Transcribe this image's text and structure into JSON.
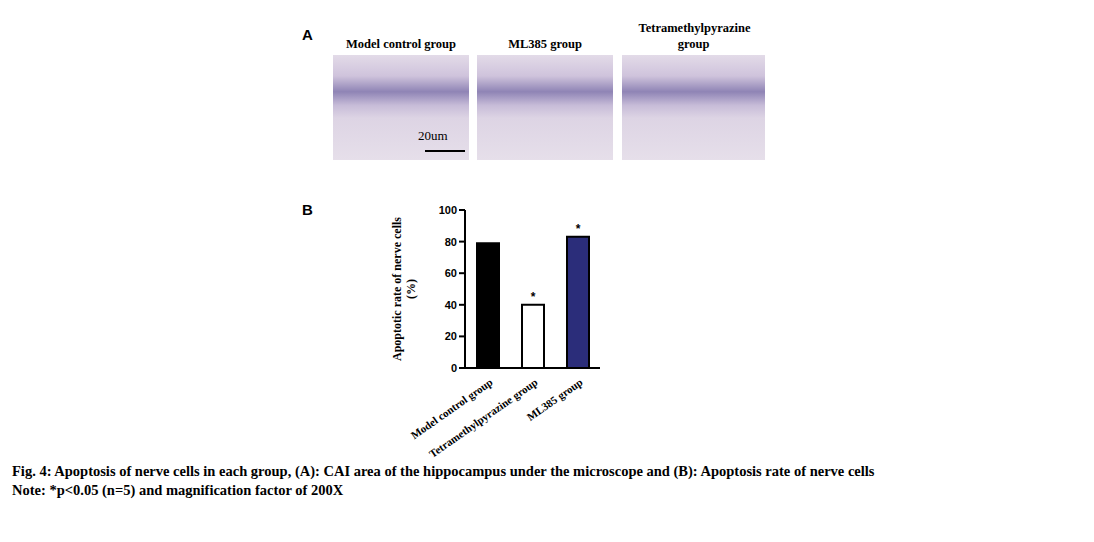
{
  "panel_a": {
    "label": "A",
    "images": [
      {
        "title": "Model control group"
      },
      {
        "title": "ML385 group"
      },
      {
        "title": "Tetramethylpyrazine group"
      }
    ],
    "scale_bar": "20um"
  },
  "chart_data": {
    "type": "bar",
    "panel_label": "B",
    "y_label": "Apoptotic rate of nerve cells (%)",
    "categories": [
      "Model control group",
      "Tetramethylpyrazine group",
      "ML385 group"
    ],
    "values": [
      79,
      40,
      83
    ],
    "colors": [
      "#000000",
      "#ffffff",
      "#2b2d7a"
    ],
    "significance": [
      null,
      "*",
      "*"
    ],
    "ylim": [
      0,
      100
    ],
    "yticks": [
      0,
      20,
      40,
      60,
      80,
      100
    ]
  },
  "caption": {
    "title": "Fig. 4: Apoptosis of nerve cells in each group, (A): CAI area of the hippocampus under the microscope and (B): Apoptosis rate of nerve cells",
    "note": "Note: *p<0.05 (n=5) and magnification factor of 200X"
  }
}
